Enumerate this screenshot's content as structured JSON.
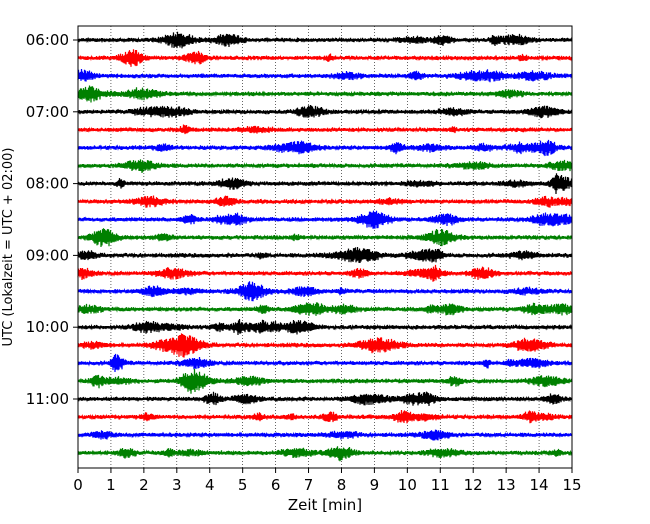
{
  "chart_data": {
    "type": "line",
    "title": "",
    "xlabel": "Zeit  [min]",
    "ylabel": "UTC (Lokalzeit = UTC + 02:00)",
    "xlim": [
      0,
      15
    ],
    "x_ticks": [
      "0",
      "1",
      "2",
      "3",
      "4",
      "5",
      "6",
      "7",
      "8",
      "9",
      "10",
      "11",
      "12",
      "13",
      "14",
      "15"
    ],
    "y_tick_labels": [
      "06:00",
      "07:00",
      "08:00",
      "09:00",
      "10:00",
      "11:00"
    ],
    "row_interval_min": 15,
    "row_count": 24,
    "first_row_utc": "06:00",
    "color_cycle": [
      "#000000",
      "#ff0000",
      "#0000ff",
      "#008000"
    ],
    "vertical_grid": "dotted, every minute",
    "legend": "none"
  }
}
